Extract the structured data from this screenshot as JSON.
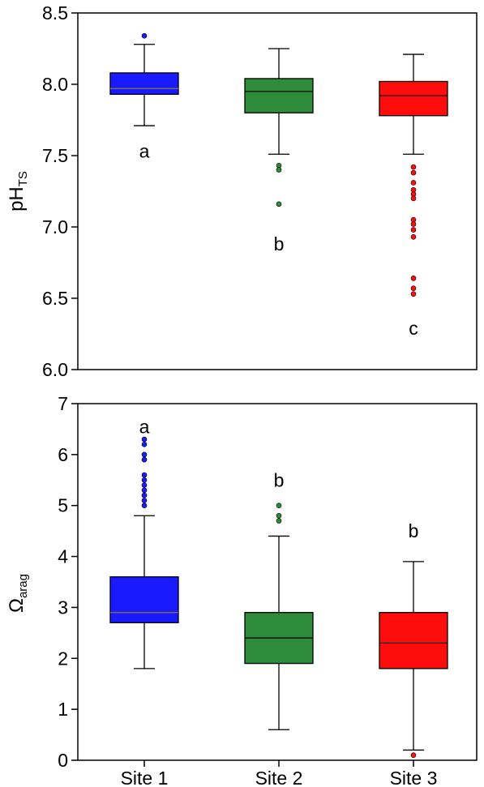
{
  "chart_data": [
    {
      "type": "box",
      "ylabel": "pH",
      "ylabel_sub": "TS",
      "ylim": [
        6.0,
        8.5
      ],
      "yticks": [
        "6.0",
        "6.5",
        "7.0",
        "7.5",
        "8.0",
        "8.5"
      ],
      "grid": false,
      "categories": [
        "Site 1",
        "Site 2",
        "Site 3"
      ],
      "series": [
        {
          "category": "Site 1",
          "color": "#1a1aff",
          "whisker_low": 7.71,
          "q1": 7.93,
          "median": 7.97,
          "q3": 8.08,
          "whisker_high": 8.28,
          "outliers": [
            8.34
          ],
          "group_letter": "a",
          "letter_y": 7.53
        },
        {
          "category": "Site 2",
          "color": "#2e8b3a",
          "whisker_low": 7.51,
          "q1": 7.8,
          "median": 7.95,
          "q3": 8.04,
          "whisker_high": 8.25,
          "outliers": [
            7.43,
            7.4,
            7.16
          ],
          "group_letter": "b",
          "letter_y": 6.88
        },
        {
          "category": "Site 3",
          "color": "#ff0d0d",
          "whisker_low": 7.51,
          "q1": 7.78,
          "median": 7.92,
          "q3": 8.02,
          "whisker_high": 8.21,
          "outliers": [
            7.42,
            7.38,
            7.31,
            7.26,
            7.23,
            7.2,
            7.05,
            7.02,
            6.98,
            6.93,
            6.64,
            6.57,
            6.53
          ],
          "group_letter": "c",
          "letter_y": 6.29
        }
      ]
    },
    {
      "type": "box",
      "ylabel": "Ω",
      "ylabel_sub": "arag",
      "ylim": [
        0,
        7
      ],
      "yticks": [
        "0",
        "1",
        "2",
        "3",
        "4",
        "5",
        "6",
        "7"
      ],
      "grid": false,
      "categories": [
        "Site 1",
        "Site 2",
        "Site 3"
      ],
      "series": [
        {
          "category": "Site 1",
          "color": "#1a1aff",
          "whisker_low": 1.8,
          "q1": 2.7,
          "median": 2.9,
          "q3": 3.6,
          "whisker_high": 4.8,
          "outliers": [
            6.3,
            6.2,
            6.0,
            5.9,
            5.6,
            5.5,
            5.4,
            5.3,
            5.2,
            5.1,
            5.0
          ],
          "group_letter": "a",
          "letter_y": 6.55
        },
        {
          "category": "Site 2",
          "color": "#2e8b3a",
          "whisker_low": 0.6,
          "q1": 1.9,
          "median": 2.4,
          "q3": 2.9,
          "whisker_high": 4.4,
          "outliers": [
            5.0,
            4.8,
            4.7
          ],
          "group_letter": "b",
          "letter_y": 5.5
        },
        {
          "category": "Site 3",
          "color": "#ff0d0d",
          "whisker_low": 0.2,
          "q1": 1.8,
          "median": 2.3,
          "q3": 2.9,
          "whisker_high": 3.9,
          "outliers": [
            0.1
          ],
          "group_letter": "b",
          "letter_y": 4.5
        }
      ]
    }
  ]
}
